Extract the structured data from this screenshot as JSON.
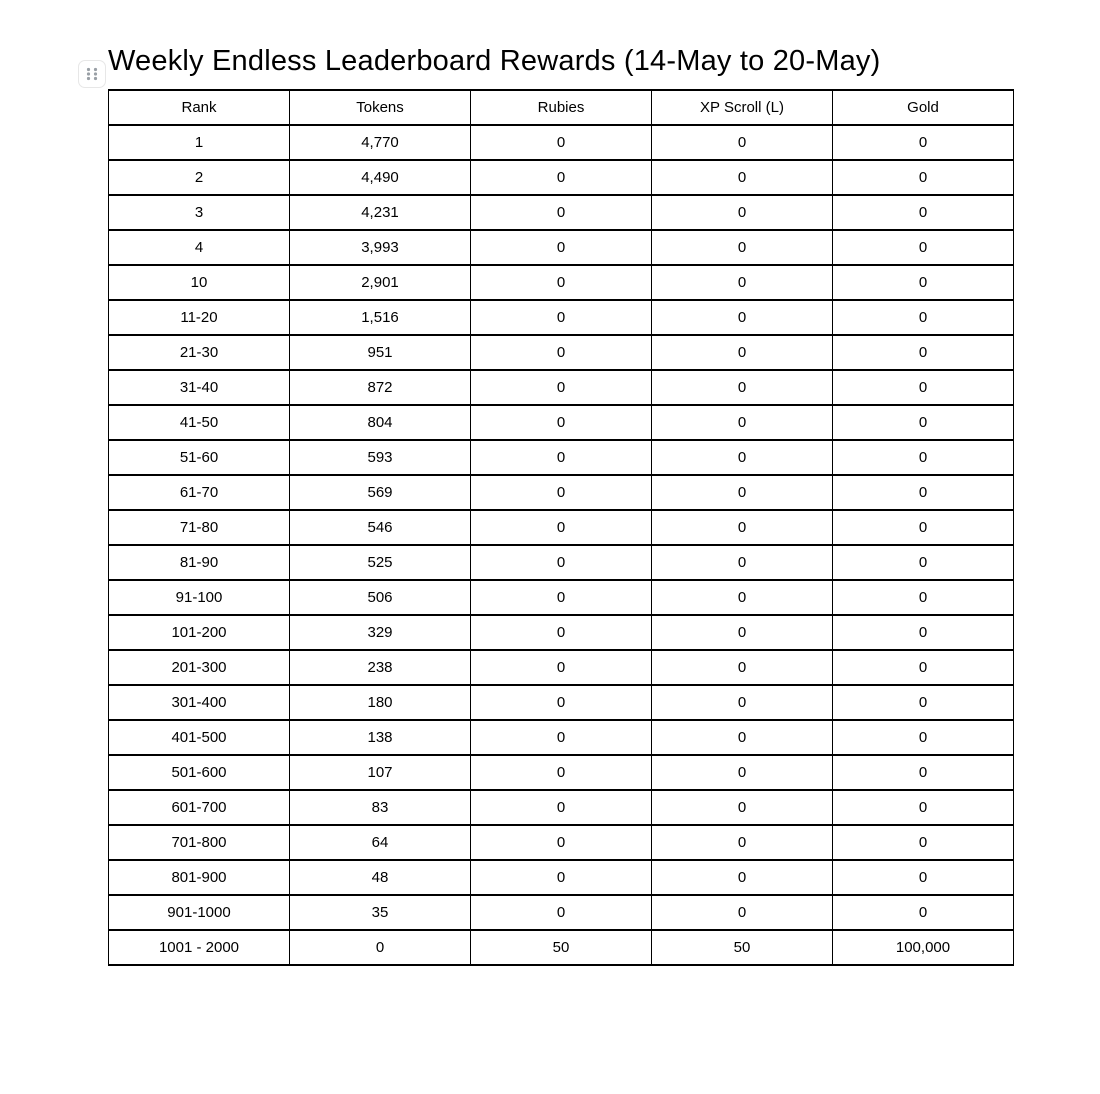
{
  "page": {
    "title": "Weekly Endless Leaderboard Rewards (14-May to 20-May)"
  },
  "icons": {
    "drag_handle": "drag-handle-dots"
  },
  "colors": {
    "background": "#ffffff",
    "text": "#000000",
    "table_border": "#000000",
    "drag_handle_border": "#e7e7e7",
    "drag_handle_dots": "#9aa0a6"
  },
  "table": {
    "columns": [
      "Rank",
      "Tokens",
      "Rubies",
      "XP Scroll (L)",
      "Gold"
    ],
    "rows": [
      [
        "1",
        "4,770",
        "0",
        "0",
        "0"
      ],
      [
        "2",
        "4,490",
        "0",
        "0",
        "0"
      ],
      [
        "3",
        "4,231",
        "0",
        "0",
        "0"
      ],
      [
        "4",
        "3,993",
        "0",
        "0",
        "0"
      ],
      [
        "10",
        "2,901",
        "0",
        "0",
        "0"
      ],
      [
        "11-20",
        "1,516",
        "0",
        "0",
        "0"
      ],
      [
        "21-30",
        "951",
        "0",
        "0",
        "0"
      ],
      [
        "31-40",
        "872",
        "0",
        "0",
        "0"
      ],
      [
        "41-50",
        "804",
        "0",
        "0",
        "0"
      ],
      [
        "51-60",
        "593",
        "0",
        "0",
        "0"
      ],
      [
        "61-70",
        "569",
        "0",
        "0",
        "0"
      ],
      [
        "71-80",
        "546",
        "0",
        "0",
        "0"
      ],
      [
        "81-90",
        "525",
        "0",
        "0",
        "0"
      ],
      [
        "91-100",
        "506",
        "0",
        "0",
        "0"
      ],
      [
        "101-200",
        "329",
        "0",
        "0",
        "0"
      ],
      [
        "201-300",
        "238",
        "0",
        "0",
        "0"
      ],
      [
        "301-400",
        "180",
        "0",
        "0",
        "0"
      ],
      [
        "401-500",
        "138",
        "0",
        "0",
        "0"
      ],
      [
        "501-600",
        "107",
        "0",
        "0",
        "0"
      ],
      [
        "601-700",
        "83",
        "0",
        "0",
        "0"
      ],
      [
        "701-800",
        "64",
        "0",
        "0",
        "0"
      ],
      [
        "801-900",
        "48",
        "0",
        "0",
        "0"
      ],
      [
        "901-1000",
        "35",
        "0",
        "0",
        "0"
      ],
      [
        "1001 - 2000",
        "0",
        "50",
        "50",
        "100,000"
      ]
    ]
  }
}
